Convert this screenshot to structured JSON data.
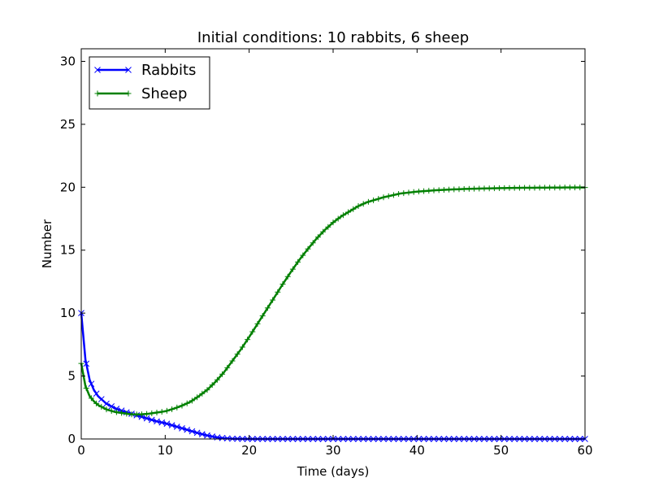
{
  "chart_data": {
    "type": "line",
    "title": "Initial conditions: 10 rabbits, 6 sheep",
    "xlabel": "Time (days)",
    "ylabel": "Number",
    "xlim": [
      0,
      60
    ],
    "ylim": [
      0,
      31
    ],
    "xticks": [
      0,
      10,
      20,
      30,
      40,
      50,
      60
    ],
    "yticks": [
      0,
      5,
      10,
      15,
      20,
      25,
      30
    ],
    "xtick_labels": [
      "0",
      "10",
      "20",
      "30",
      "40",
      "50",
      "60"
    ],
    "ytick_labels": [
      "0",
      "5",
      "10",
      "15",
      "20",
      "25",
      "30"
    ],
    "grid": false,
    "legend_position": "top-left",
    "series": [
      {
        "name": "Rabbits",
        "color": "#0000ff",
        "marker": "x",
        "x": [
          0,
          0.5,
          1,
          1.5,
          2,
          3,
          4,
          5,
          6,
          7,
          8,
          9,
          10,
          11,
          12,
          13,
          14,
          15,
          16,
          17,
          18,
          19,
          20,
          25,
          30,
          40,
          50,
          60
        ],
        "y": [
          10,
          6.3,
          4.7,
          3.9,
          3.4,
          2.8,
          2.45,
          2.2,
          2.0,
          1.8,
          1.6,
          1.4,
          1.25,
          1.05,
          0.85,
          0.65,
          0.45,
          0.28,
          0.14,
          0.06,
          0.02,
          0.01,
          0.0,
          0.0,
          0.0,
          0.0,
          0.0,
          0.0
        ]
      },
      {
        "name": "Sheep",
        "color": "#008000",
        "marker": "+",
        "x": [
          0,
          0.5,
          1,
          1.5,
          2,
          3,
          4,
          5,
          6,
          7,
          8,
          9,
          10,
          11,
          12,
          13,
          14,
          15,
          16,
          17,
          18,
          19,
          20,
          21,
          22,
          23,
          24,
          25,
          26,
          27,
          28,
          29,
          30,
          31,
          32,
          33,
          34,
          35,
          36,
          37,
          38,
          40,
          42,
          44,
          46,
          48,
          50,
          52,
          54,
          56,
          58,
          60
        ],
        "y": [
          6.0,
          4.2,
          3.4,
          3.0,
          2.7,
          2.35,
          2.15,
          2.05,
          1.95,
          1.95,
          2.0,
          2.1,
          2.2,
          2.4,
          2.65,
          2.95,
          3.4,
          3.9,
          4.55,
          5.3,
          6.2,
          7.1,
          8.1,
          9.15,
          10.2,
          11.25,
          12.3,
          13.3,
          14.25,
          15.1,
          15.9,
          16.6,
          17.2,
          17.7,
          18.1,
          18.5,
          18.8,
          19.0,
          19.2,
          19.35,
          19.5,
          19.65,
          19.75,
          19.82,
          19.87,
          19.9,
          19.93,
          19.95,
          19.96,
          19.97,
          19.98,
          19.98
        ]
      }
    ]
  }
}
